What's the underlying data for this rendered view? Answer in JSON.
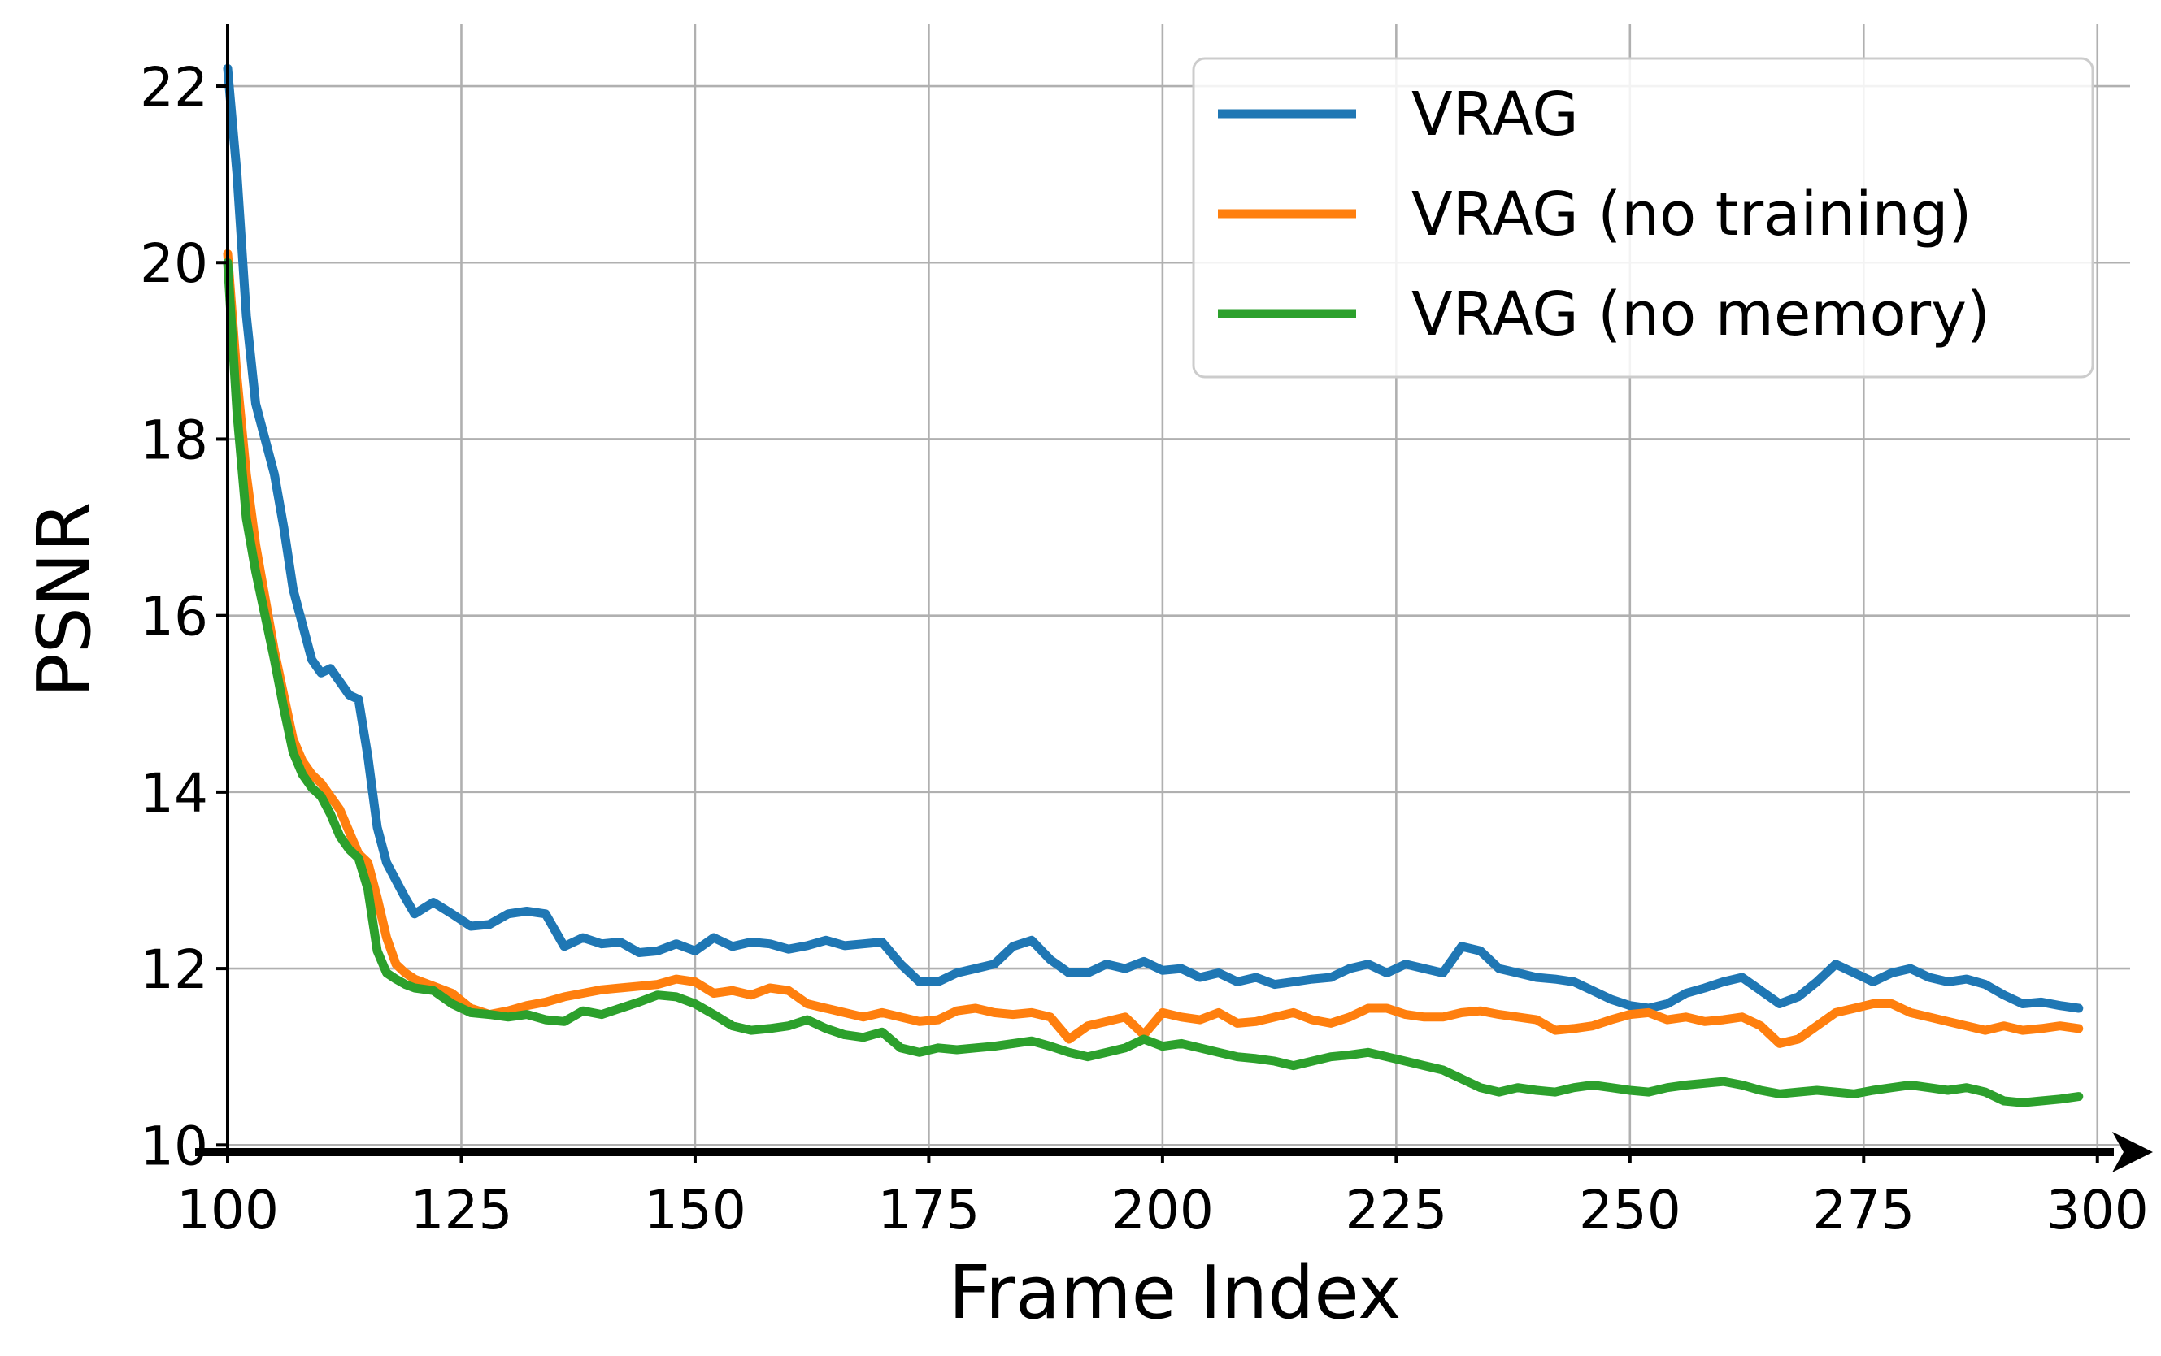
{
  "chart_data": {
    "type": "line",
    "xlabel": "Frame Index",
    "ylabel": "PSNR",
    "xlim": [
      100,
      300
    ],
    "ylim": [
      10,
      22.7
    ],
    "xticks": [
      100,
      125,
      150,
      175,
      200,
      225,
      250,
      275,
      300
    ],
    "xtick_labels": [
      "100",
      "125",
      "150",
      "175",
      "200",
      "225",
      "250",
      "275",
      "300"
    ],
    "yticks": [
      10,
      12,
      14,
      16,
      18,
      20,
      22
    ],
    "ytick_labels": [
      "10",
      "12",
      "14",
      "16",
      "18",
      "20",
      "22"
    ],
    "grid": true,
    "legend_position": "top-right",
    "series": [
      {
        "name": "VRAG",
        "color": "#1f77b4",
        "x": [
          100,
          101,
          102,
          103,
          104,
          105,
          106,
          107,
          108,
          109,
          110,
          111,
          112,
          113,
          114,
          115,
          116,
          117,
          118,
          119,
          120,
          122,
          124,
          126,
          128,
          130,
          132,
          134,
          136,
          138,
          140,
          142,
          144,
          146,
          148,
          150,
          152,
          154,
          156,
          158,
          160,
          162,
          164,
          166,
          168,
          170,
          172,
          174,
          176,
          178,
          180,
          182,
          184,
          186,
          188,
          190,
          192,
          194,
          196,
          198,
          200,
          202,
          204,
          206,
          208,
          210,
          212,
          214,
          216,
          218,
          220,
          222,
          224,
          226,
          228,
          230,
          232,
          234,
          236,
          238,
          240,
          242,
          244,
          246,
          248,
          250,
          252,
          254,
          256,
          258,
          260,
          262,
          264,
          266,
          268,
          270,
          272,
          274,
          276,
          278,
          280,
          282,
          284,
          286,
          288,
          290,
          292,
          294,
          296,
          298
        ],
        "values": [
          22.2,
          21.0,
          19.4,
          18.4,
          18.0,
          17.6,
          17.0,
          16.3,
          15.9,
          15.5,
          15.35,
          15.4,
          15.25,
          15.1,
          15.05,
          14.4,
          13.6,
          13.2,
          13.0,
          12.8,
          12.62,
          12.75,
          12.62,
          12.48,
          12.5,
          12.62,
          12.65,
          12.62,
          12.25,
          12.35,
          12.28,
          12.3,
          12.18,
          12.2,
          12.28,
          12.2,
          12.35,
          12.25,
          12.3,
          12.28,
          12.22,
          12.26,
          12.32,
          12.26,
          12.28,
          12.3,
          12.05,
          11.85,
          11.85,
          11.95,
          12.0,
          12.05,
          12.25,
          12.32,
          12.1,
          11.95,
          11.95,
          12.05,
          12.0,
          12.08,
          11.98,
          12.0,
          11.9,
          11.95,
          11.85,
          11.9,
          11.82,
          11.85,
          11.88,
          11.9,
          12.0,
          12.05,
          11.95,
          12.05,
          12.0,
          11.95,
          12.25,
          12.2,
          12.0,
          11.95,
          11.9,
          11.88,
          11.85,
          11.75,
          11.65,
          11.58,
          11.55,
          11.6,
          11.72,
          11.78,
          11.85,
          11.9,
          11.75,
          11.6,
          11.68,
          11.85,
          12.05,
          11.95,
          11.85,
          11.95,
          12.0,
          11.9,
          11.85,
          11.88,
          11.82,
          11.7,
          11.6,
          11.62,
          11.58,
          11.55
        ]
      },
      {
        "name": "VRAG (no training)",
        "color": "#ff7f0e",
        "x": [
          100,
          101,
          102,
          103,
          104,
          105,
          106,
          107,
          108,
          109,
          110,
          111,
          112,
          113,
          114,
          115,
          116,
          117,
          118,
          119,
          120,
          122,
          124,
          126,
          128,
          130,
          132,
          134,
          136,
          138,
          140,
          142,
          144,
          146,
          148,
          150,
          152,
          154,
          156,
          158,
          160,
          162,
          164,
          166,
          168,
          170,
          172,
          174,
          176,
          178,
          180,
          182,
          184,
          186,
          188,
          190,
          192,
          194,
          196,
          198,
          200,
          202,
          204,
          206,
          208,
          210,
          212,
          214,
          216,
          218,
          220,
          222,
          224,
          226,
          228,
          230,
          232,
          234,
          236,
          238,
          240,
          242,
          244,
          246,
          248,
          250,
          252,
          254,
          256,
          258,
          260,
          262,
          264,
          266,
          268,
          270,
          272,
          274,
          276,
          278,
          280,
          282,
          284,
          286,
          288,
          290,
          292,
          294,
          296,
          298
        ],
        "values": [
          20.1,
          18.7,
          17.6,
          16.8,
          16.2,
          15.6,
          15.1,
          14.6,
          14.35,
          14.2,
          14.1,
          13.95,
          13.8,
          13.55,
          13.3,
          13.2,
          12.8,
          12.35,
          12.05,
          11.95,
          11.88,
          11.8,
          11.72,
          11.55,
          11.48,
          11.52,
          11.58,
          11.62,
          11.68,
          11.72,
          11.76,
          11.78,
          11.8,
          11.82,
          11.88,
          11.85,
          11.72,
          11.75,
          11.7,
          11.78,
          11.75,
          11.6,
          11.55,
          11.5,
          11.45,
          11.5,
          11.45,
          11.4,
          11.42,
          11.52,
          11.55,
          11.5,
          11.48,
          11.5,
          11.45,
          11.2,
          11.35,
          11.4,
          11.45,
          11.25,
          11.5,
          11.45,
          11.42,
          11.5,
          11.38,
          11.4,
          11.45,
          11.5,
          11.42,
          11.38,
          11.45,
          11.55,
          11.55,
          11.48,
          11.45,
          11.45,
          11.5,
          11.52,
          11.48,
          11.45,
          11.42,
          11.3,
          11.32,
          11.35,
          11.42,
          11.48,
          11.5,
          11.42,
          11.45,
          11.4,
          11.42,
          11.45,
          11.35,
          11.15,
          11.2,
          11.35,
          11.5,
          11.55,
          11.6,
          11.6,
          11.5,
          11.45,
          11.4,
          11.35,
          11.3,
          11.35,
          11.3,
          11.32,
          11.35,
          11.32
        ]
      },
      {
        "name": "VRAG (no memory)",
        "color": "#2ca02c",
        "x": [
          100,
          101,
          102,
          103,
          104,
          105,
          106,
          107,
          108,
          109,
          110,
          111,
          112,
          113,
          114,
          115,
          116,
          117,
          118,
          119,
          120,
          122,
          124,
          126,
          128,
          130,
          132,
          134,
          136,
          138,
          140,
          142,
          144,
          146,
          148,
          150,
          152,
          154,
          156,
          158,
          160,
          162,
          164,
          166,
          168,
          170,
          172,
          174,
          176,
          178,
          180,
          182,
          184,
          186,
          188,
          190,
          192,
          194,
          196,
          198,
          200,
          202,
          204,
          206,
          208,
          210,
          212,
          214,
          216,
          218,
          220,
          222,
          224,
          226,
          228,
          230,
          232,
          234,
          236,
          238,
          240,
          242,
          244,
          246,
          248,
          250,
          252,
          254,
          256,
          258,
          260,
          262,
          264,
          266,
          268,
          270,
          272,
          274,
          276,
          278,
          280,
          282,
          284,
          286,
          288,
          290,
          292,
          294,
          296,
          298
        ],
        "values": [
          20.0,
          18.3,
          17.1,
          16.5,
          16.0,
          15.5,
          14.95,
          14.45,
          14.2,
          14.05,
          13.95,
          13.75,
          13.5,
          13.35,
          13.25,
          12.9,
          12.2,
          11.95,
          11.88,
          11.82,
          11.78,
          11.75,
          11.6,
          11.5,
          11.48,
          11.45,
          11.48,
          11.42,
          11.4,
          11.52,
          11.48,
          11.55,
          11.62,
          11.7,
          11.68,
          11.6,
          11.48,
          11.35,
          11.3,
          11.32,
          11.35,
          11.42,
          11.32,
          11.25,
          11.22,
          11.28,
          11.1,
          11.05,
          11.1,
          11.08,
          11.1,
          11.12,
          11.15,
          11.18,
          11.12,
          11.05,
          11.0,
          11.05,
          11.1,
          11.2,
          11.12,
          11.15,
          11.1,
          11.05,
          11.0,
          10.98,
          10.95,
          10.9,
          10.95,
          11.0,
          11.02,
          11.05,
          11.0,
          10.95,
          10.9,
          10.85,
          10.75,
          10.65,
          10.6,
          10.65,
          10.62,
          10.6,
          10.65,
          10.68,
          10.65,
          10.62,
          10.6,
          10.65,
          10.68,
          10.7,
          10.72,
          10.68,
          10.62,
          10.58,
          10.6,
          10.62,
          10.6,
          10.58,
          10.62,
          10.65,
          10.68,
          10.65,
          10.62,
          10.65,
          10.6,
          10.5,
          10.48,
          10.5,
          10.52,
          10.55
        ]
      }
    ]
  }
}
